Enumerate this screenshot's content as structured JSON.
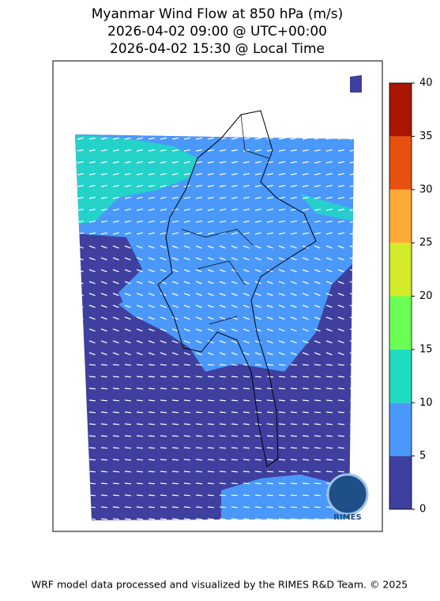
{
  "title": [
    "Myanmar Wind Flow at 850 hPa (m/s)",
    "2026-04-02 09:00 @ UTC+00:00",
    "2026-04-02 15:30 @ Local Time"
  ],
  "colorbar": {
    "ticks": [
      0,
      5,
      10,
      15,
      20,
      25,
      30,
      35,
      40
    ],
    "colors": [
      "#3f3f9f",
      "#4a98fa",
      "#1fdcc0",
      "#6bff55",
      "#d2ea2a",
      "#ffab38",
      "#e8500f",
      "#a81600"
    ]
  },
  "logo": "RIMES",
  "footer": "WRF model data processed and visualized by the RIMES R&D Team. © 2025"
}
